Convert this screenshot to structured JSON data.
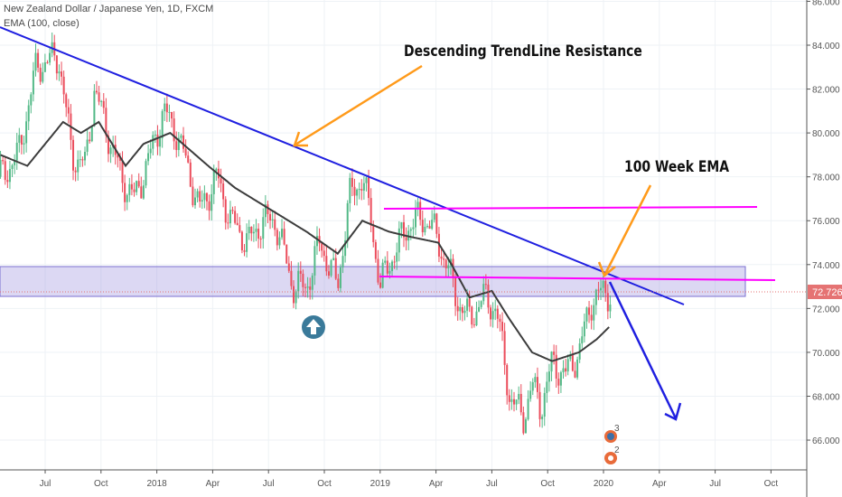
{
  "header": {
    "symbol_title": "New Zealand Dollar / Japanese Yen, 1D, FXCM",
    "indicator": "EMA (100, close)"
  },
  "annotations": {
    "trendline_label": "Descending TrendLine Resistance",
    "ema_label": "100 Week EMA",
    "event_counts": [
      "3",
      "2"
    ]
  },
  "colors": {
    "up": "#53b987",
    "down": "#eb4d5c",
    "ema": "#3c3c3c",
    "trendline": "#1f1fe0",
    "level": "#ff00ff",
    "zone": "#9c8fdc",
    "arrow": "#ff9a1a",
    "price_label": "#e57373"
  },
  "chart_data": {
    "type": "candlestick",
    "title": "New Zealand Dollar / Japanese Yen, 1D, FXCM",
    "ylim": [
      64.5,
      86
    ],
    "y_ticks": [
      "86.000",
      "84.000",
      "82.000",
      "80.000",
      "78.000",
      "76.000",
      "74.000",
      "72.000",
      "70.000",
      "68.000",
      "66.000"
    ],
    "x_ticks": [
      "Jul",
      "Oct",
      "2018",
      "Apr",
      "Jul",
      "Oct",
      "2019",
      "Apr",
      "Jul",
      "Oct",
      "2020",
      "Apr",
      "Jul",
      "Oct"
    ],
    "last_price": "72.726",
    "price_path": [
      [
        2017.3,
        78
      ],
      [
        2017.38,
        79
      ],
      [
        2017.46,
        83
      ],
      [
        2017.56,
        83.5
      ],
      [
        2017.62,
        79
      ],
      [
        2017.68,
        78.5
      ],
      [
        2017.72,
        82
      ],
      [
        2017.78,
        80
      ],
      [
        2017.84,
        78
      ],
      [
        2017.9,
        77
      ],
      [
        2017.97,
        79
      ],
      [
        2018.03,
        81
      ],
      [
        2018.09,
        80
      ],
      [
        2018.15,
        78
      ],
      [
        2018.19,
        76.5
      ],
      [
        2018.27,
        78
      ],
      [
        2018.33,
        76
      ],
      [
        2018.41,
        75
      ],
      [
        2018.47,
        76
      ],
      [
        2018.53,
        76
      ],
      [
        2018.61,
        73
      ],
      [
        2018.67,
        73
      ],
      [
        2018.73,
        75
      ],
      [
        2018.81,
        73
      ],
      [
        2018.86,
        77
      ],
      [
        2018.92,
        78
      ],
      [
        2018.96,
        76
      ],
      [
        2019.0,
        73
      ],
      [
        2019.06,
        74.5
      ],
      [
        2019.14,
        76
      ],
      [
        2019.22,
        76
      ],
      [
        2019.3,
        74
      ],
      [
        2019.34,
        72.5
      ],
      [
        2019.4,
        71.5
      ],
      [
        2019.46,
        72.5
      ],
      [
        2019.52,
        72
      ],
      [
        2019.58,
        68
      ],
      [
        2019.64,
        67
      ],
      [
        2019.68,
        68.5
      ],
      [
        2019.72,
        67.5
      ],
      [
        2019.77,
        69.5
      ],
      [
        2019.83,
        69
      ],
      [
        2019.89,
        70
      ],
      [
        2019.95,
        72.5
      ],
      [
        2020.0,
        72.7
      ],
      [
        2020.04,
        72.726
      ]
    ],
    "ema_path": [
      [
        2017.3,
        79
      ],
      [
        2017.42,
        78.5
      ],
      [
        2017.58,
        80.5
      ],
      [
        2017.66,
        80
      ],
      [
        2017.74,
        80.5
      ],
      [
        2017.86,
        78.5
      ],
      [
        2017.94,
        79.5
      ],
      [
        2018.06,
        80
      ],
      [
        2018.23,
        78.5
      ],
      [
        2018.35,
        77.5
      ],
      [
        2018.51,
        76.5
      ],
      [
        2018.67,
        75.5
      ],
      [
        2018.81,
        74.5
      ],
      [
        2018.92,
        76
      ],
      [
        2019.04,
        75.5
      ],
      [
        2019.12,
        75.3
      ],
      [
        2019.26,
        75
      ],
      [
        2019.32,
        74
      ],
      [
        2019.4,
        72.5
      ],
      [
        2019.5,
        72.8
      ],
      [
        2019.58,
        71.5
      ],
      [
        2019.68,
        70
      ],
      [
        2019.77,
        69.6
      ],
      [
        2019.89,
        70
      ],
      [
        2019.97,
        70.6
      ],
      [
        2020.03,
        71.2
      ]
    ]
  }
}
